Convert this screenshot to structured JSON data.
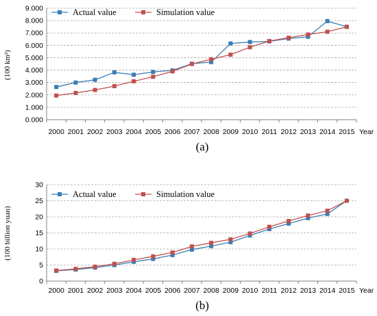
{
  "chart_data": [
    {
      "type": "line",
      "caption": "(a)",
      "ylabel": "(100 km²)",
      "xlabel": "Year",
      "categories": [
        "2000",
        "2001",
        "2002",
        "2003",
        "2004",
        "2005",
        "2006",
        "2007",
        "2008",
        "2009",
        "2010",
        "2011",
        "2012",
        "2013",
        "2014",
        "2015"
      ],
      "yticks": [
        "0.000",
        "1.000",
        "2.000",
        "3.000",
        "4.000",
        "5.000",
        "6.000",
        "7.000",
        "8.000",
        "9.000"
      ],
      "ylim": [
        0,
        9
      ],
      "grid": true,
      "legend": "top-left",
      "series": [
        {
          "name": "Actual value",
          "color": "#3a7db3",
          "marker": "square",
          "values": [
            2.64,
            3.0,
            3.22,
            3.82,
            3.63,
            3.86,
            3.98,
            4.52,
            4.65,
            6.15,
            6.27,
            6.32,
            6.55,
            6.7,
            7.96,
            7.5
          ]
        },
        {
          "name": "Simulation value",
          "color": "#c0504d",
          "marker": "square",
          "values": [
            1.95,
            2.16,
            2.4,
            2.71,
            3.1,
            3.47,
            3.9,
            4.5,
            4.88,
            5.25,
            5.85,
            6.35,
            6.62,
            6.88,
            7.1,
            7.5
          ]
        }
      ]
    },
    {
      "type": "line",
      "caption": "(b)",
      "ylabel": "(100 billion yuan)",
      "xlabel": "Year",
      "categories": [
        "2000",
        "2001",
        "2002",
        "2003",
        "2004",
        "2005",
        "2006",
        "2007",
        "2008",
        "2009",
        "2010",
        "2011",
        "2012",
        "2013",
        "2014",
        "2015"
      ],
      "yticks": [
        "0",
        "5",
        "10",
        "15",
        "20",
        "25",
        "30"
      ],
      "ylim": [
        0,
        30
      ],
      "grid": true,
      "legend": "top-left",
      "series": [
        {
          "name": "Actual value",
          "color": "#3a7db3",
          "marker": "square",
          "values": [
            3.2,
            3.6,
            4.2,
            5.0,
            6.0,
            6.9,
            8.1,
            9.8,
            10.9,
            12.1,
            14.2,
            16.2,
            17.9,
            19.6,
            20.9,
            25.0
          ]
        },
        {
          "name": "Simulation value",
          "color": "#c0504d",
          "marker": "square",
          "values": [
            3.3,
            3.8,
            4.5,
            5.4,
            6.6,
            7.7,
            8.9,
            10.8,
            11.9,
            13.0,
            14.8,
            16.9,
            18.7,
            20.4,
            21.9,
            25.0
          ]
        }
      ]
    }
  ]
}
